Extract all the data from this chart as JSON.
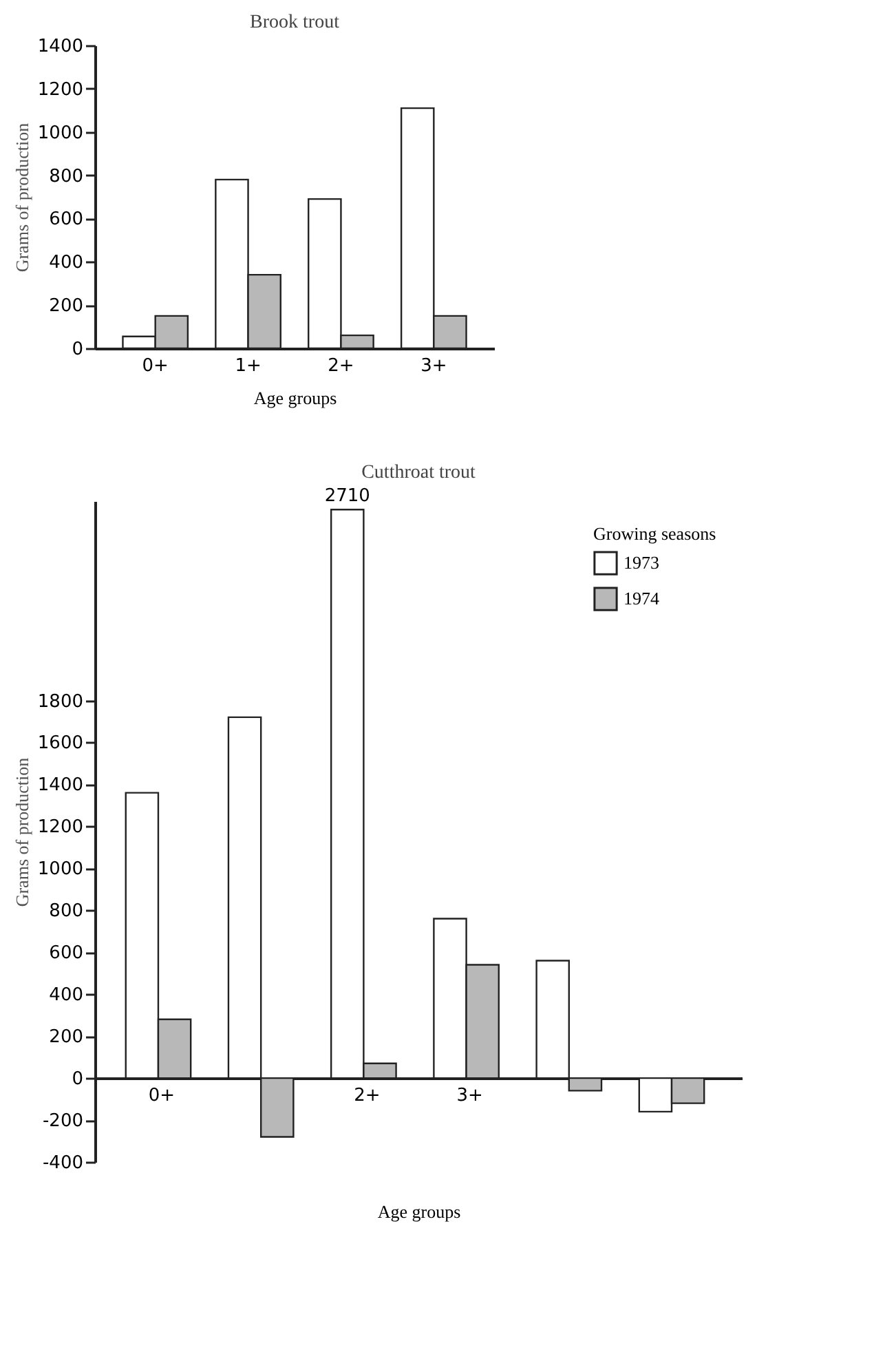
{
  "chart_data": [
    {
      "type": "bar",
      "title": "Brook trout",
      "xlabel": "Age groups",
      "ylabel": "Grams of production",
      "categories": [
        "0+",
        "1+",
        "2+",
        "3+"
      ],
      "series": [
        {
          "color": "#ffffff",
          "values": [
            55,
            780,
            690,
            1110
          ]
        },
        {
          "color": "#b8b8b8",
          "values": [
            150,
            340,
            60,
            150
          ]
        }
      ],
      "ylim": [
        0,
        1400
      ],
      "yticks": [
        0,
        200,
        400,
        600,
        800,
        1000,
        1200,
        1400
      ],
      "grid": false,
      "legend": false
    },
    {
      "type": "bar",
      "title": "Cutthroat trout",
      "xlabel": "Age groups",
      "ylabel": "Grams of production",
      "legend_title": "Growing seasons",
      "categories": [
        "0+",
        null,
        "2+",
        "3+",
        null,
        null
      ],
      "series": [
        {
          "name": "1973",
          "color": "#ffffff",
          "values": [
            1360,
            1720,
            2710,
            760,
            560,
            -160
          ],
          "value_labels": [
            null,
            null,
            "2710",
            null,
            null,
            null
          ]
        },
        {
          "name": "1974",
          "color": "#b8b8b8",
          "values": [
            280,
            -280,
            70,
            540,
            -60,
            -120
          ]
        }
      ],
      "ylim": [
        -400,
        2750
      ],
      "yticks": [
        -400,
        -200,
        0,
        200,
        400,
        600,
        800,
        1000,
        1200,
        1400,
        1600,
        1800
      ],
      "grid": false,
      "legend": "top right"
    }
  ]
}
